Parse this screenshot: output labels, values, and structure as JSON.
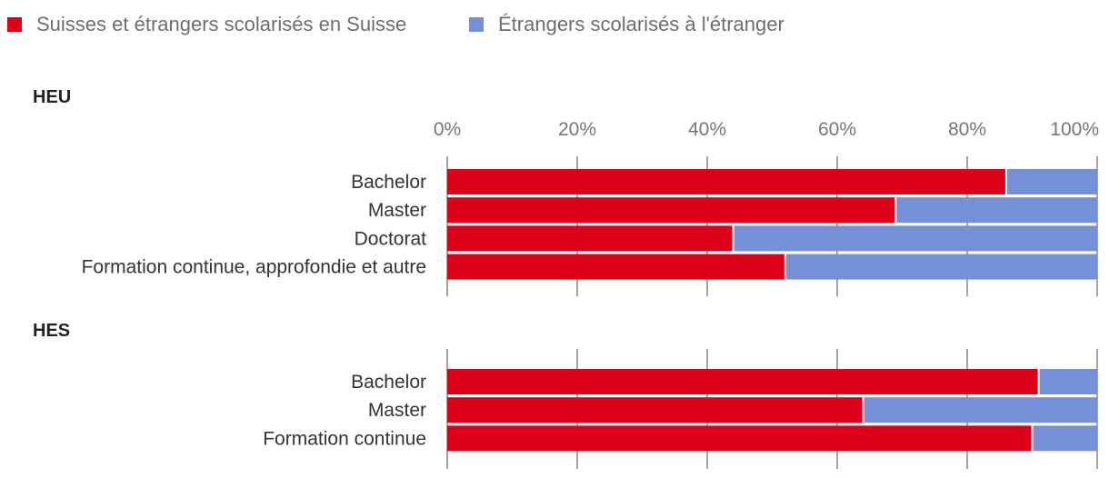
{
  "chart_data": [
    {
      "type": "bar",
      "orientation": "horizontal",
      "stacked": true,
      "title": "HEU",
      "categories": [
        "Bachelor",
        "Master",
        "Doctorat",
        "Formation continue, approfondie et autre"
      ],
      "series": [
        {
          "name": "Suisses et étrangers scolarisés en Suisse",
          "color": "#dd0019",
          "values": [
            86,
            69,
            44,
            52
          ]
        },
        {
          "name": "Étrangers scolarisés à l'étranger",
          "color": "#7690d8",
          "values": [
            14,
            31,
            56,
            48
          ]
        }
      ],
      "xlim": [
        0,
        100
      ],
      "ticks": [
        "0%",
        "20%",
        "40%",
        "60%",
        "80%",
        "100%"
      ],
      "tick_values": [
        0,
        20,
        40,
        60,
        80,
        100
      ],
      "legend": "top-left",
      "grid": true
    },
    {
      "type": "bar",
      "orientation": "horizontal",
      "stacked": true,
      "title": "HES",
      "categories": [
        "Bachelor",
        "Master",
        "Formation continue"
      ],
      "series": [
        {
          "name": "Suisses et étrangers scolarisés en Suisse",
          "color": "#dd0019",
          "values": [
            91,
            64,
            90
          ]
        },
        {
          "name": "Étrangers scolarisés à l'étranger",
          "color": "#7690d8",
          "values": [
            9,
            36,
            10
          ]
        }
      ],
      "xlim": [
        0,
        100
      ],
      "tick_values": [
        0,
        20,
        40,
        60,
        80,
        100
      ],
      "grid": true
    }
  ]
}
